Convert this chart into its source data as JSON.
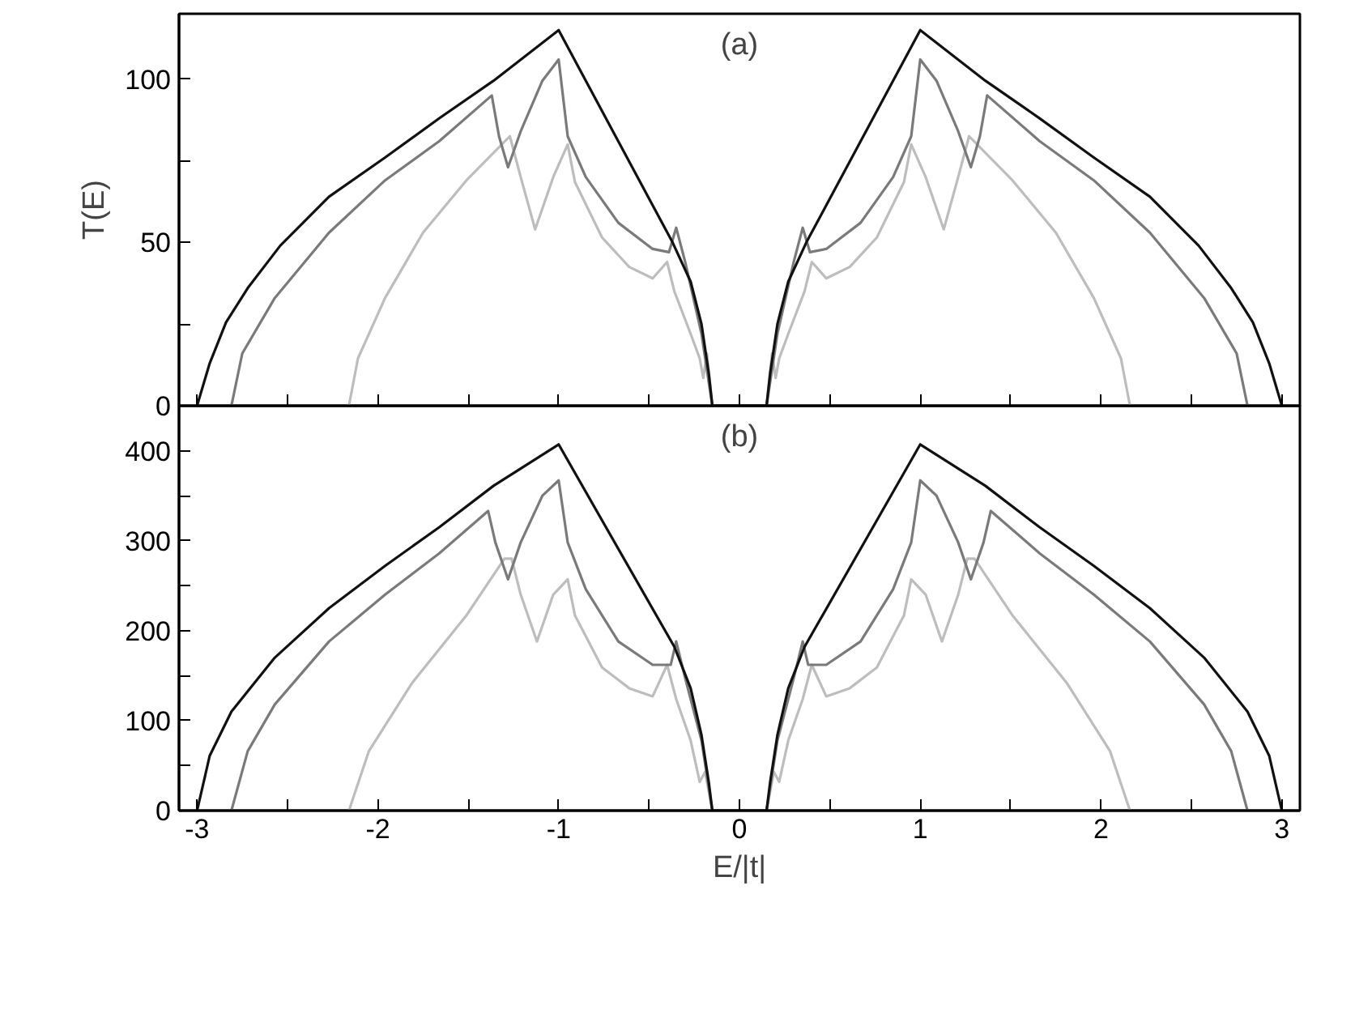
{
  "chart_data": [
    {
      "type": "line",
      "annotations": [
        "(a)"
      ],
      "ylabel": "T(E)",
      "tick_labels": "y",
      "grid": false,
      "xlim": [
        -3.1,
        3.1
      ],
      "ylim": [
        0,
        120
      ],
      "xticks": [
        -3,
        {
          "value": -2.5,
          "label": null
        },
        -2,
        {
          "value": -1.5,
          "label": null
        },
        -1,
        {
          "value": -0.5,
          "label": null
        },
        0,
        {
          "value": 0.5,
          "label": null
        },
        1,
        {
          "value": 1.5,
          "label": null
        },
        2,
        {
          "value": 2.5,
          "label": null
        },
        3
      ],
      "yticks": [
        0,
        {
          "value": 25,
          "label": null
        },
        50,
        {
          "value": 75,
          "label": null
        },
        100
      ],
      "series": [
        {
          "color": "#bdbdbd",
          "x": [
            -2.16,
            -2.11,
            -1.96,
            -1.75,
            -1.51,
            -1.27,
            -1.21,
            -1.13,
            -1.03,
            -0.95,
            -0.91,
            -0.76,
            -0.61,
            -0.48,
            -0.4,
            -0.36,
            -0.27,
            -0.22,
            -0.2,
            -0.18,
            -0.15,
            0.15,
            0.18,
            0.2,
            0.22,
            0.27,
            0.36,
            0.4,
            0.48,
            0.61,
            0.76,
            0.91,
            0.95,
            1.03,
            1.13,
            1.21,
            1.27,
            1.51,
            1.75,
            1.96,
            2.11,
            2.16
          ],
          "values": [
            0,
            14.5,
            33,
            53,
            69,
            82.5,
            70,
            54,
            70,
            80,
            68.5,
            51.5,
            42.5,
            39,
            44,
            35,
            22,
            14.5,
            8.5,
            16,
            0,
            0,
            16,
            8.5,
            14.5,
            22,
            35,
            44,
            39,
            42.5,
            51.5,
            68.5,
            80,
            70,
            54,
            70,
            82.5,
            69,
            53,
            33,
            14.5,
            0
          ]
        },
        {
          "color": "#7a7a7a",
          "x": [
            -2.81,
            -2.75,
            -2.57,
            -2.27,
            -1.96,
            -1.66,
            -1.37,
            -1.33,
            -1.28,
            -1.21,
            -1.09,
            -1,
            -0.95,
            -0.85,
            -0.67,
            -0.48,
            -0.39,
            -0.35,
            -0.3,
            -0.21,
            -0.15,
            0.15,
            0.21,
            0.3,
            0.35,
            0.39,
            0.48,
            0.67,
            0.85,
            0.95,
            1,
            1.09,
            1.21,
            1.28,
            1.33,
            1.37,
            1.66,
            1.96,
            2.27,
            2.57,
            2.75,
            2.81
          ],
          "values": [
            0,
            16,
            33,
            53,
            69,
            81,
            95,
            82.5,
            73,
            84,
            99.5,
            106,
            82.5,
            70,
            56,
            48,
            47,
            54.5,
            44,
            22,
            0,
            0,
            22,
            44,
            54.5,
            47,
            48,
            56,
            70,
            82.5,
            106,
            99.5,
            84,
            73,
            82.5,
            95,
            81,
            69,
            53,
            33,
            16,
            0
          ]
        },
        {
          "color": "#111111",
          "x": [
            -3,
            -2.93,
            -2.84,
            -2.72,
            -2.54,
            -2.27,
            -1.96,
            -1.66,
            -1.36,
            -1,
            -0.37,
            -0.27,
            -0.21,
            -0.17,
            -0.15,
            0.15,
            0.17,
            0.21,
            0.27,
            0.37,
            1,
            1.36,
            1.66,
            1.96,
            2.27,
            2.54,
            2.72,
            2.84,
            2.93,
            3
          ],
          "values": [
            0,
            13,
            25.5,
            36,
            49,
            64,
            76,
            88,
            99.5,
            115,
            50,
            38,
            25,
            10,
            0,
            0,
            10,
            25,
            38,
            50,
            115,
            99.5,
            88,
            76,
            64,
            49,
            36,
            25.5,
            13,
            0
          ]
        }
      ]
    },
    {
      "type": "line",
      "annotations": [
        "(b)"
      ],
      "xlabel": "E/|t|",
      "grid": false,
      "xlim": [
        -3.1,
        3.1
      ],
      "ylim": [
        0,
        450
      ],
      "xticks": [
        -3,
        {
          "value": -2.5,
          "label": null
        },
        -2,
        {
          "value": -1.5,
          "label": null
        },
        -1,
        {
          "value": -0.5,
          "label": null
        },
        0,
        {
          "value": 0.5,
          "label": null
        },
        1,
        {
          "value": 1.5,
          "label": null
        },
        2,
        {
          "value": 2.5,
          "label": null
        },
        3
      ],
      "yticks": [
        0,
        {
          "value": 50,
          "label": null
        },
        100,
        {
          "value": 150,
          "label": null
        },
        200,
        {
          "value": 250,
          "label": null
        },
        300,
        {
          "value": 350,
          "label": null
        },
        400
      ],
      "series": [
        {
          "color": "#bdbdbd",
          "x": [
            -2.16,
            -2.05,
            -1.81,
            -1.51,
            -1.3,
            -1.26,
            -1.21,
            -1.12,
            -1.03,
            -0.95,
            -0.91,
            -0.76,
            -0.61,
            -0.48,
            -0.4,
            -0.35,
            -0.27,
            -0.22,
            -0.19,
            -0.15,
            0.15,
            0.19,
            0.22,
            0.27,
            0.35,
            0.4,
            0.48,
            0.61,
            0.76,
            0.91,
            0.95,
            1.03,
            1.12,
            1.21,
            1.26,
            1.3,
            1.51,
            1.81,
            2.05,
            2.16
          ],
          "values": [
            0,
            66,
            142,
            217,
            280,
            280,
            240,
            188,
            240,
            257,
            217,
            159,
            136,
            127,
            162,
            124,
            78,
            32,
            43,
            0,
            0,
            43,
            32,
            78,
            124,
            162,
            127,
            136,
            159,
            217,
            257,
            240,
            188,
            240,
            280,
            280,
            217,
            142,
            66,
            0
          ]
        },
        {
          "color": "#7a7a7a",
          "x": [
            -2.81,
            -2.72,
            -2.57,
            -2.27,
            -1.96,
            -1.66,
            -1.39,
            -1.35,
            -1.28,
            -1.21,
            -1.09,
            -1,
            -0.95,
            -0.85,
            -0.67,
            -0.48,
            -0.38,
            -0.35,
            -0.3,
            -0.21,
            -0.15,
            0.15,
            0.21,
            0.3,
            0.35,
            0.38,
            0.48,
            0.67,
            0.85,
            0.95,
            1,
            1.09,
            1.21,
            1.28,
            1.35,
            1.39,
            1.66,
            1.96,
            2.27,
            2.57,
            2.72,
            2.81
          ],
          "values": [
            0,
            66,
            118,
            188,
            240,
            286,
            333,
            298,
            257,
            298,
            350,
            367,
            298,
            246,
            188,
            162,
            162,
            188,
            147,
            78,
            0,
            0,
            78,
            147,
            188,
            162,
            162,
            188,
            246,
            298,
            367,
            350,
            298,
            257,
            298,
            333,
            286,
            240,
            188,
            118,
            66,
            0
          ]
        },
        {
          "color": "#111111",
          "x": [
            -3,
            -2.93,
            -2.81,
            -2.57,
            -2.27,
            -1.96,
            -1.66,
            -1.36,
            -1,
            -0.36,
            -0.27,
            -0.21,
            -0.17,
            -0.15,
            0.15,
            0.17,
            0.21,
            0.27,
            0.36,
            1,
            1.36,
            1.66,
            1.96,
            2.27,
            2.57,
            2.81,
            2.93,
            3
          ],
          "values": [
            0,
            61,
            110,
            170,
            225,
            272,
            315,
            361,
            407,
            182,
            136,
            84,
            32,
            0,
            0,
            32,
            84,
            136,
            182,
            407,
            361,
            315,
            272,
            225,
            170,
            110,
            61,
            0
          ]
        }
      ]
    }
  ]
}
